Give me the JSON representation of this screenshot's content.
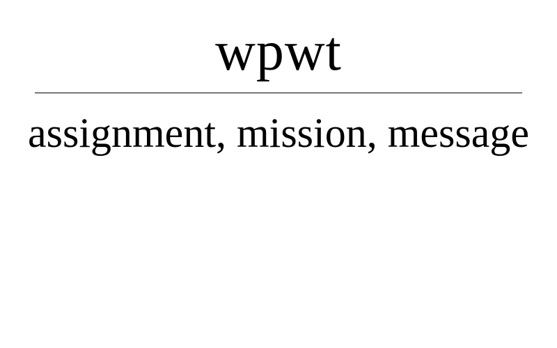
{
  "card": {
    "term": "wpwt",
    "definition": "assignment, mission, message"
  }
}
